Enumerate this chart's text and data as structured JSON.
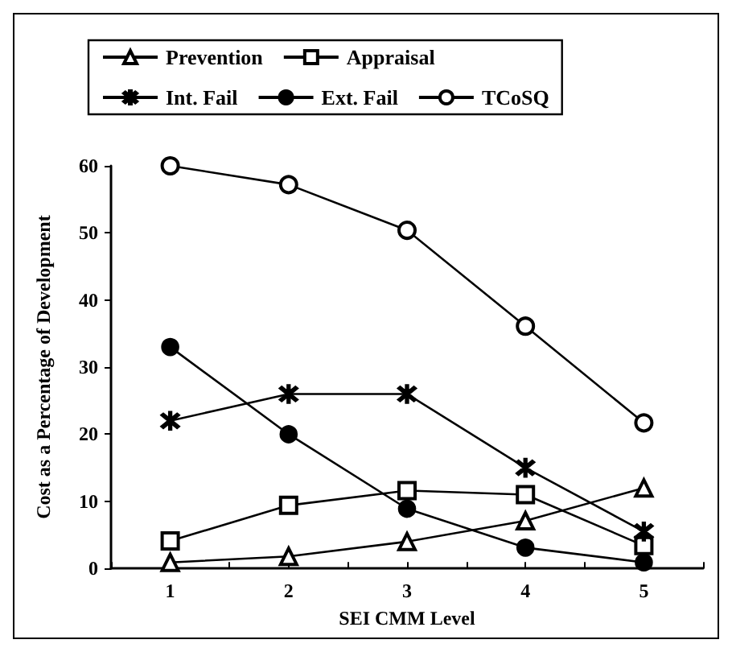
{
  "chart_data": {
    "type": "line",
    "xlabel": "SEI CMM Level",
    "ylabel": "Cost as a Percentage of Development",
    "x": [
      1,
      2,
      3,
      4,
      5
    ],
    "series": [
      {
        "name": "Prevention",
        "color": "#000000",
        "marker": "triangle",
        "values": [
          0.9,
          1.8,
          4,
          7.1,
          12
        ]
      },
      {
        "name": "Appraisal",
        "color": "#000000",
        "marker": "square",
        "values": [
          4.1,
          9.4,
          11.6,
          11,
          3.4
        ]
      },
      {
        "name": "Int. Fail",
        "color": "#000000",
        "marker": "cross",
        "values": [
          22,
          26,
          26,
          15,
          5.5
        ]
      },
      {
        "name": "Ext. Fail",
        "color": "#000000",
        "marker": "circle",
        "values": [
          33,
          20,
          8.9,
          3.1,
          0.9
        ]
      },
      {
        "name": "TCoSQ",
        "color": "#000000",
        "marker": "circle",
        "values": [
          60,
          57.2,
          50.4,
          36.1,
          21.7
        ]
      }
    ],
    "xlim": [
      0.5,
      5.5
    ],
    "xticks": [
      {
        "value": 0.5,
        "label": null
      },
      1,
      {
        "value": 1.5,
        "label": null
      },
      2,
      {
        "value": 2.5,
        "label": null
      },
      3,
      {
        "value": 3.5,
        "label": null
      },
      4,
      {
        "value": 4.5,
        "label": null
      },
      5,
      {
        "value": 5.5,
        "label": null
      }
    ],
    "ylim": [
      0,
      60
    ],
    "yticks": [
      0,
      10,
      20,
      30,
      40,
      50,
      60
    ],
    "grid": false,
    "legend": "top",
    "line_style": "solid"
  }
}
